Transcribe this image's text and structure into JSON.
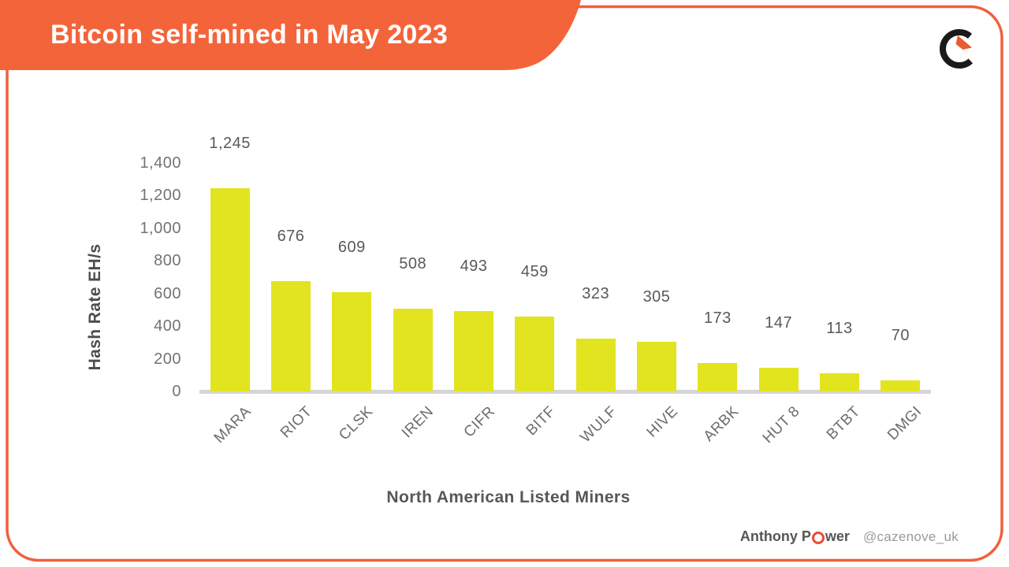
{
  "header": {
    "title": "Bitcoin self-mined in May 2023"
  },
  "logo": {
    "icon": "c-arrow-logo",
    "c_color": "#1a1a1a",
    "arrow_color": "#e95c31"
  },
  "chart_data": {
    "type": "bar",
    "title": "Bitcoin self-mined in May 2023",
    "xlabel": "North American Listed Miners",
    "ylabel": "Hash Rate EH/s",
    "categories": [
      "MARA",
      "RIOT",
      "CLSK",
      "IREN",
      "CIFR",
      "BITF",
      "WULF",
      "HIVE",
      "ARBK",
      "HUT 8",
      "BTBT",
      "DMGI"
    ],
    "values": [
      1245,
      676,
      609,
      508,
      493,
      459,
      323,
      305,
      173,
      147,
      113,
      70
    ],
    "value_labels": [
      "1,245",
      "676",
      "609",
      "508",
      "493",
      "459",
      "323",
      "305",
      "173",
      "147",
      "113",
      "70"
    ],
    "y_ticks": [
      "0",
      "200",
      "400",
      "600",
      "800",
      "1,000",
      "1,200",
      "1,400"
    ],
    "y_tick_step": 200,
    "ylim": [
      0,
      1400
    ],
    "bar_color": "#e2e41f",
    "grid": false,
    "legend": null,
    "baseline_color": "#d5d5d5"
  },
  "colors": {
    "accent_orange": "#f4643a",
    "border_orange": "#f0603c",
    "bar_yellow": "#e2e41f",
    "ring_red": "#ef4a34"
  },
  "footer": {
    "author_prefix": "Anthony P",
    "author_o_icon": "orange-ring-o",
    "author_suffix": "wer",
    "handle": "@cazenove_uk"
  }
}
